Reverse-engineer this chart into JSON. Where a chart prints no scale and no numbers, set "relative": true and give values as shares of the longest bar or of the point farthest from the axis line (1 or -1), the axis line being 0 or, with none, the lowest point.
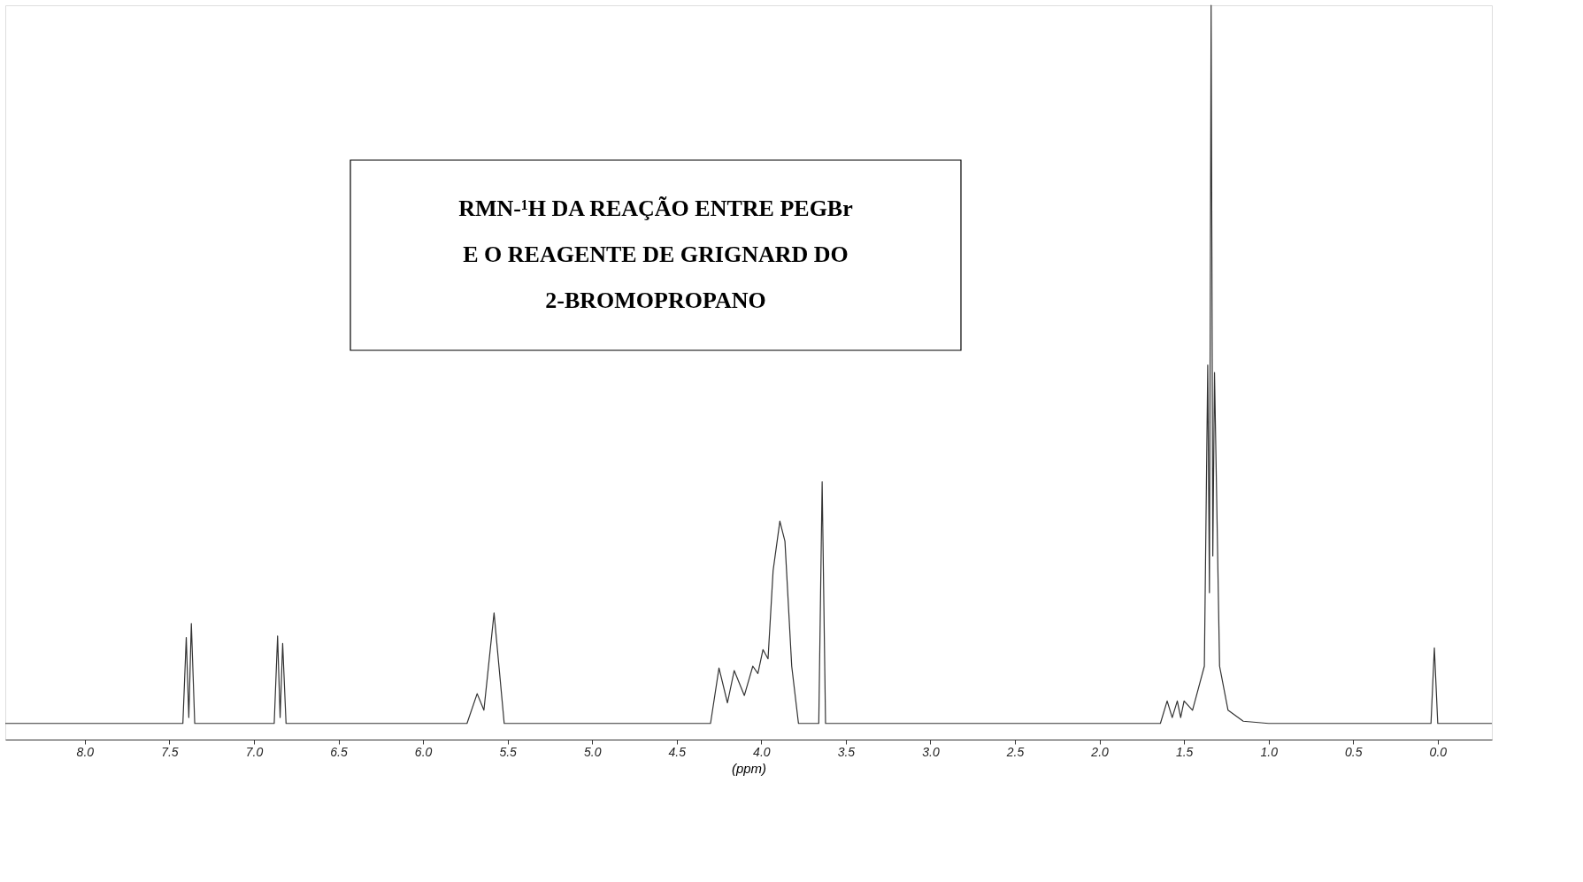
{
  "chart_data": {
    "type": "line",
    "relative": true,
    "xlabel": "(ppm)",
    "annotations": [
      "RMN-¹H DA REAÇÃO ENTRE PEGBr\nE O REAGENTE DE GRIGNARD DO\n2-BROMOPROPANO"
    ],
    "xlim": [
      8.47,
      -0.32
    ],
    "xticks": [
      {
        "value": 8,
        "label": "8.0"
      },
      {
        "value": 7.5,
        "label": "7.5"
      },
      {
        "value": 7,
        "label": "7.0"
      },
      {
        "value": 6.5,
        "label": "6.5"
      },
      {
        "value": 6,
        "label": "6.0"
      },
      {
        "value": 5.5,
        "label": "5.5"
      },
      {
        "value": 5,
        "label": "5.0"
      },
      {
        "value": 4.5,
        "label": "4.5"
      },
      {
        "value": 4,
        "label": "4.0"
      },
      {
        "value": 3.5,
        "label": "3.5"
      },
      {
        "value": 3,
        "label": "3.0"
      },
      {
        "value": 2.5,
        "label": "2.5"
      },
      {
        "value": 2,
        "label": "2.0"
      },
      {
        "value": 1.5,
        "label": "1.5"
      },
      {
        "value": 1,
        "label": "1.0"
      },
      {
        "value": 0.5,
        "label": "0.5"
      },
      {
        "value": 0,
        "label": "0.0"
      }
    ],
    "grid": false,
    "marker": "none",
    "line_style": "solid",
    "series": [
      {
        "color": "#333333",
        "x": [
          8.47,
          7.42,
          7.4,
          7.385,
          7.37,
          7.35,
          6.88,
          6.86,
          6.845,
          6.83,
          6.81,
          5.74,
          5.68,
          5.64,
          5.58,
          5.52,
          4.3,
          4.25,
          4.2,
          4.16,
          4.1,
          4.05,
          4.02,
          3.99,
          3.96,
          3.93,
          3.89,
          3.86,
          3.82,
          3.78,
          3.66,
          3.64,
          3.62,
          1.64,
          1.6,
          1.57,
          1.54,
          1.52,
          1.5,
          1.45,
          1.38,
          1.36,
          1.35,
          1.34,
          1.33,
          1.32,
          1.29,
          1.24,
          1.15,
          1.0,
          0.04,
          0.02,
          0.0,
          -0.32
        ],
        "values": [
          0.022,
          0.022,
          0.139,
          0.03,
          0.158,
          0.022,
          0.022,
          0.141,
          0.03,
          0.131,
          0.022,
          0.022,
          0.0625,
          0.04,
          0.1725,
          0.022,
          0.022,
          0.0975,
          0.05,
          0.094,
          0.06,
          0.1,
          0.09,
          0.1225,
          0.11,
          0.23,
          0.2975,
          0.27,
          0.1,
          0.022,
          0.022,
          0.351,
          0.022,
          0.022,
          0.0525,
          0.03,
          0.0525,
          0.03,
          0.0525,
          0.04,
          0.1,
          0.51,
          0.2,
          1.0,
          0.25,
          0.5,
          0.1,
          0.04,
          0.025,
          0.022,
          0.022,
          0.125,
          0.022,
          0.022
        ]
      }
    ]
  }
}
